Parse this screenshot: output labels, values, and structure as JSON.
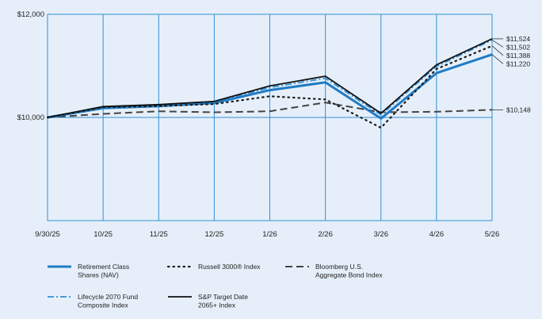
{
  "chart_data": {
    "type": "line",
    "x": [
      "9/30/25",
      "10/25",
      "11/25",
      "12/25",
      "1/26",
      "2/26",
      "3/26",
      "4/26",
      "5/26"
    ],
    "y_ticks": [
      "$12,000",
      "$10,000"
    ],
    "ylim": [
      8000,
      12000
    ],
    "grid": true,
    "legend_placement": "bottom",
    "series": [
      {
        "name": "Retirement Class Shares (NAV)",
        "values": [
          10000,
          10180,
          10220,
          10280,
          10530,
          10680,
          9980,
          10860,
          11220
        ],
        "end_label": "$11,220",
        "color": "#1f7bc4",
        "style": "thick-solid"
      },
      {
        "name": "Russell 3000® Index",
        "values": [
          10000,
          10200,
          10220,
          10260,
          10410,
          10350,
          9800,
          10940,
          11388
        ],
        "end_label": "$11,388",
        "color": "#1a1a1a",
        "style": "dotted"
      },
      {
        "name": "Bloomberg U.S. Aggregate Bond Index",
        "values": [
          10000,
          10070,
          10120,
          10100,
          10120,
          10290,
          10100,
          10110,
          10148
        ],
        "end_label": "$10,148",
        "color": "#444444",
        "style": "dashed"
      },
      {
        "name": "Lifecycle 2070 Fund Composite Index",
        "values": [
          10000,
          10200,
          10240,
          10300,
          10580,
          10760,
          10050,
          10990,
          11502
        ],
        "end_label": "$11,502",
        "color": "#2f8fd6",
        "style": "dash-dot"
      },
      {
        "name": "S&P Target Date 2065+ Index",
        "values": [
          10000,
          10210,
          10250,
          10310,
          10610,
          10800,
          10080,
          11020,
          11524
        ],
        "end_label": "$11,524",
        "color": "#111111",
        "style": "solid"
      }
    ]
  }
}
